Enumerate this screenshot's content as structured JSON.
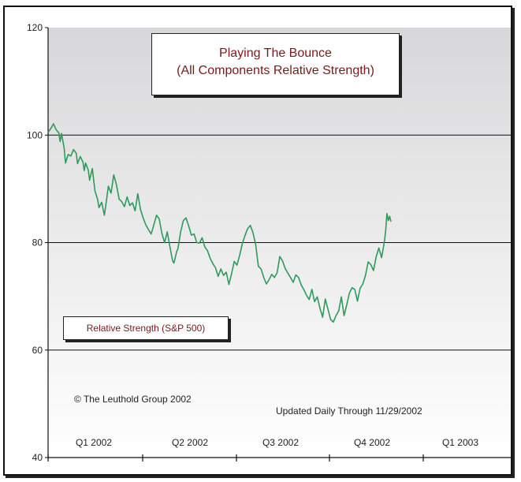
{
  "chart_data": {
    "type": "line",
    "title": "Playing The Bounce",
    "subtitle": "(All Components Relative Strength)",
    "legend": "Relative Strength (S&P 500)",
    "y_ticks": [
      "120",
      "100",
      "80",
      "60",
      "40"
    ],
    "ylim": [
      40,
      120
    ],
    "quarters": [
      "Q1 2002",
      "Q2 2002",
      "Q3 2002",
      "Q4 2002",
      "Q1 2003"
    ],
    "x_unit": "trading day index (0 = start of 2002)",
    "xlim": [
      0,
      300
    ],
    "series": [
      {
        "name": "Relative Strength (S&P 500)",
        "color": "#2e9a5c",
        "points": [
          [
            0,
            100.5
          ],
          [
            2,
            101.2
          ],
          [
            4,
            102.1
          ],
          [
            6,
            101.0
          ],
          [
            8,
            100.4
          ],
          [
            9,
            98.8
          ],
          [
            10,
            100.3
          ],
          [
            12,
            97.6
          ],
          [
            13,
            94.8
          ],
          [
            15,
            96.4
          ],
          [
            17,
            96.1
          ],
          [
            19,
            97.3
          ],
          [
            21,
            96.6
          ],
          [
            22,
            94.7
          ],
          [
            24,
            96.0
          ],
          [
            26,
            95.0
          ],
          [
            27,
            93.4
          ],
          [
            28,
            94.8
          ],
          [
            30,
            93.5
          ],
          [
            31,
            91.6
          ],
          [
            33,
            93.8
          ],
          [
            35,
            89.6
          ],
          [
            37,
            88.0
          ],
          [
            38,
            86.5
          ],
          [
            40,
            87.5
          ],
          [
            42,
            85.1
          ],
          [
            43,
            86.8
          ],
          [
            45,
            90.5
          ],
          [
            47,
            89.2
          ],
          [
            49,
            92.6
          ],
          [
            51,
            90.8
          ],
          [
            53,
            88.1
          ],
          [
            55,
            87.6
          ],
          [
            57,
            86.7
          ],
          [
            59,
            88.5
          ],
          [
            61,
            86.9
          ],
          [
            63,
            87.4
          ],
          [
            65,
            85.9
          ],
          [
            67,
            89.1
          ],
          [
            69,
            86.2
          ],
          [
            71,
            84.6
          ],
          [
            73,
            83.3
          ],
          [
            75,
            82.4
          ],
          [
            77,
            81.6
          ],
          [
            79,
            83.3
          ],
          [
            81,
            85.1
          ],
          [
            83,
            84.4
          ],
          [
            85,
            81.7
          ],
          [
            87,
            80.0
          ],
          [
            89,
            82.0
          ],
          [
            91,
            79.2
          ],
          [
            93,
            76.6
          ],
          [
            94,
            76.2
          ],
          [
            96,
            78.3
          ],
          [
            97,
            78.9
          ],
          [
            99,
            82.0
          ],
          [
            101,
            84.1
          ],
          [
            103,
            84.6
          ],
          [
            105,
            83.1
          ],
          [
            107,
            81.4
          ],
          [
            109,
            81.6
          ],
          [
            111,
            80.0
          ],
          [
            113,
            79.9
          ],
          [
            115,
            80.9
          ],
          [
            117,
            79.2
          ],
          [
            119,
            78.5
          ],
          [
            121,
            77.1
          ],
          [
            123,
            76.1
          ],
          [
            125,
            75.3
          ],
          [
            127,
            73.7
          ],
          [
            129,
            75.1
          ],
          [
            131,
            73.9
          ],
          [
            133,
            74.5
          ],
          [
            135,
            72.2
          ],
          [
            137,
            74.2
          ],
          [
            139,
            76.5
          ],
          [
            141,
            75.8
          ],
          [
            143,
            77.6
          ],
          [
            145,
            79.8
          ],
          [
            147,
            81.3
          ],
          [
            149,
            82.6
          ],
          [
            151,
            83.2
          ],
          [
            153,
            81.8
          ],
          [
            155,
            79.6
          ],
          [
            157,
            75.6
          ],
          [
            159,
            75.1
          ],
          [
            161,
            73.5
          ],
          [
            163,
            72.3
          ],
          [
            165,
            73.1
          ],
          [
            167,
            74.1
          ],
          [
            169,
            73.5
          ],
          [
            171,
            74.4
          ],
          [
            173,
            77.4
          ],
          [
            175,
            76.6
          ],
          [
            177,
            75.2
          ],
          [
            179,
            74.3
          ],
          [
            181,
            73.5
          ],
          [
            183,
            72.6
          ],
          [
            185,
            74.0
          ],
          [
            187,
            73.5
          ],
          [
            189,
            72.1
          ],
          [
            191,
            71.2
          ],
          [
            193,
            70.2
          ],
          [
            195,
            69.4
          ],
          [
            197,
            71.3
          ],
          [
            199,
            69.0
          ],
          [
            201,
            69.9
          ],
          [
            203,
            67.8
          ],
          [
            205,
            66.1
          ],
          [
            207,
            69.5
          ],
          [
            209,
            67.6
          ],
          [
            211,
            65.7
          ],
          [
            213,
            65.2
          ],
          [
            215,
            66.4
          ],
          [
            217,
            67.3
          ],
          [
            219,
            69.9
          ],
          [
            221,
            66.4
          ],
          [
            223,
            68.4
          ],
          [
            225,
            70.6
          ],
          [
            227,
            71.6
          ],
          [
            229,
            71.3
          ],
          [
            231,
            69.1
          ],
          [
            233,
            71.5
          ],
          [
            235,
            72.3
          ],
          [
            237,
            73.9
          ],
          [
            239,
            76.4
          ],
          [
            241,
            75.9
          ],
          [
            243,
            74.8
          ],
          [
            245,
            77.4
          ],
          [
            247,
            79.0
          ],
          [
            249,
            77.2
          ],
          [
            251,
            80.0
          ],
          [
            252,
            82.0
          ],
          [
            253,
            85.4
          ],
          [
            254,
            84.1
          ],
          [
            255,
            84.9
          ],
          [
            256,
            83.9
          ]
        ]
      }
    ],
    "annotations": [
      "© The Leuthold Group 2002",
      "Updated Daily Through 11/29/2002"
    ],
    "colors": {
      "band_top": "#d8d8da",
      "band_bottom": "#ffffff",
      "line": "#2e9a5c",
      "title_text": "#7a1a1a"
    }
  }
}
